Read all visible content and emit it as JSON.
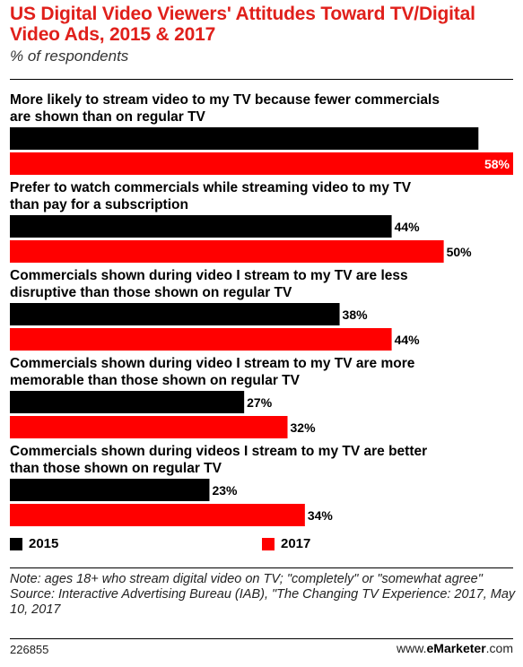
{
  "chart_data": {
    "type": "bar",
    "orientation": "horizontal",
    "title": "US Digital Video Viewers' Attitudes Toward TV/Digital Video Ads, 2015 & 2017",
    "subtitle": "% of respondents",
    "categories": [
      "More likely to stream video to my TV because fewer commercials are shown than on regular TV",
      "Prefer to watch commercials while streaming video to my TV than pay for a subscription",
      "Commercials shown during video I stream to my TV are less disruptive than those shown on regular TV",
      "Commercials shown during video I stream to my TV are more memorable than those shown on regular TV",
      "Commercials shown during videos I stream to my TV are better than those shown on regular TV"
    ],
    "category_lines": [
      [
        "More likely to stream video to my TV because fewer commercials",
        "are shown than on regular TV"
      ],
      [
        "Prefer to watch commercials while streaming video to my TV",
        "than pay for a subscription"
      ],
      [
        "Commercials shown during video I stream to my TV are less",
        "disruptive than those shown on regular TV"
      ],
      [
        "Commercials shown during video I stream to my TV are more",
        "memorable than those shown on regular TV"
      ],
      [
        "Commercials shown during videos I stream to my TV are better",
        "than those shown on regular TV"
      ]
    ],
    "series": [
      {
        "name": "2015",
        "color": "#000000",
        "values": [
          54,
          44,
          38,
          27,
          23
        ]
      },
      {
        "name": "2017",
        "color": "#ff0000",
        "values": [
          58,
          50,
          44,
          32,
          34
        ]
      }
    ],
    "value_suffix": "%",
    "xlim": [
      0,
      58
    ],
    "grid": false,
    "legend_position": "bottom"
  },
  "notes": {
    "note": "Note: ages 18+ who stream digital video on TV; \"completely\" or \"somewhat agree\"",
    "source": "Source: Interactive Advertising Bureau (IAB), \"The Changing TV Experience: 2017, May 10, 2017"
  },
  "footer": {
    "chart_id": "226855",
    "brand_prefix": "www.",
    "brand_name": "eMarketer",
    "brand_suffix": ".com"
  }
}
